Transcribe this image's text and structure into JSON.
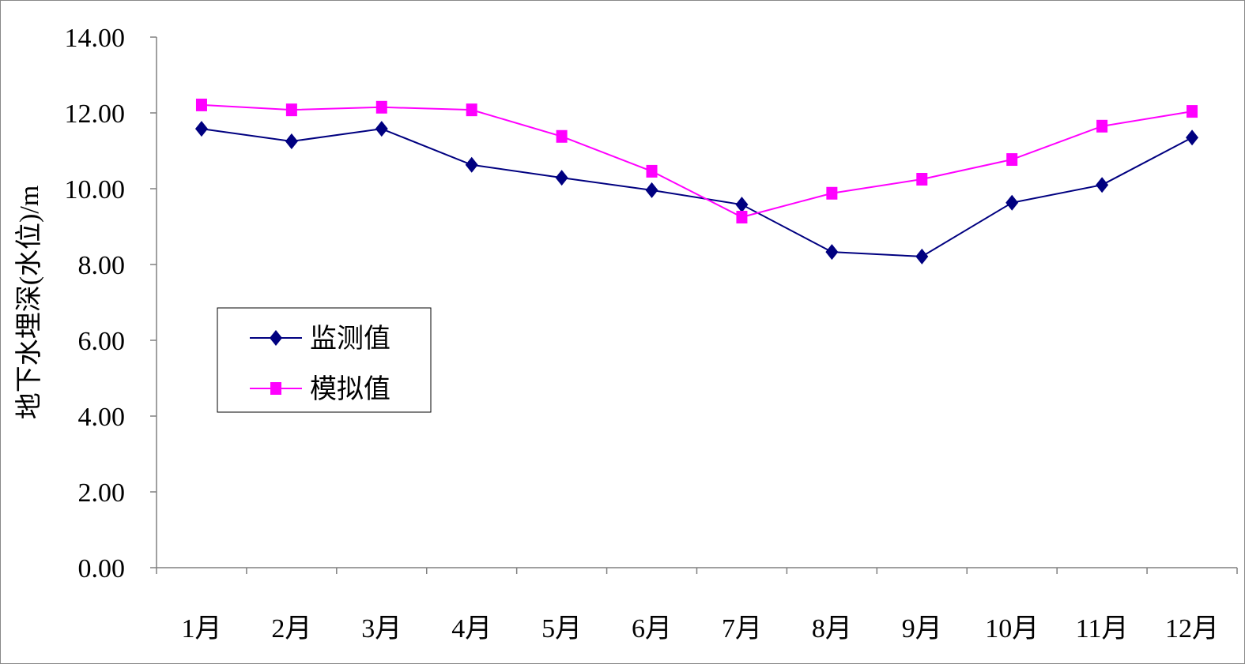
{
  "chart_data": {
    "type": "line",
    "title": "",
    "xlabel": "",
    "ylabel": "地下水埋深(水位)/m",
    "categories": [
      "1月",
      "2月",
      "3月",
      "4月",
      "5月",
      "6月",
      "7月",
      "8月",
      "9月",
      "10月",
      "11月",
      "12月"
    ],
    "ylim": [
      0,
      14
    ],
    "yticks": [
      "0.00",
      "2.00",
      "4.00",
      "6.00",
      "8.00",
      "10.00",
      "12.00",
      "14.00"
    ],
    "grid": false,
    "legend_position": "left-middle",
    "series": [
      {
        "name": "监测值",
        "color": "#000080",
        "marker": "diamond",
        "values": [
          11.58,
          11.25,
          11.58,
          10.63,
          10.29,
          9.96,
          9.58,
          8.33,
          8.21,
          9.63,
          10.1,
          11.35
        ]
      },
      {
        "name": "模拟值",
        "color": "#FF00FF",
        "marker": "square",
        "values": [
          12.21,
          12.08,
          12.15,
          12.08,
          11.38,
          10.46,
          9.25,
          9.88,
          10.25,
          10.77,
          11.65,
          12.04
        ]
      }
    ]
  }
}
